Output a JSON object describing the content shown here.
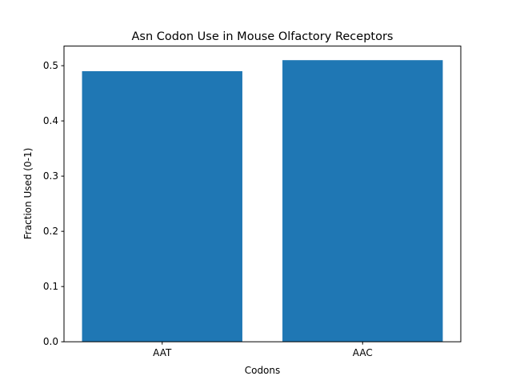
{
  "chart_data": {
    "type": "bar",
    "title": "Asn Codon Use in Mouse Olfactory Receptors",
    "xlabel": "Codons",
    "ylabel": "Fraction Used (0-1)",
    "categories": [
      "AAT",
      "AAC"
    ],
    "values": [
      0.49,
      0.51
    ],
    "ylim": [
      0,
      0.5355
    ],
    "yticks": [
      "0.0",
      "0.1",
      "0.2",
      "0.3",
      "0.4",
      "0.5"
    ],
    "grid": false,
    "bar_color": "#1f77b4"
  }
}
